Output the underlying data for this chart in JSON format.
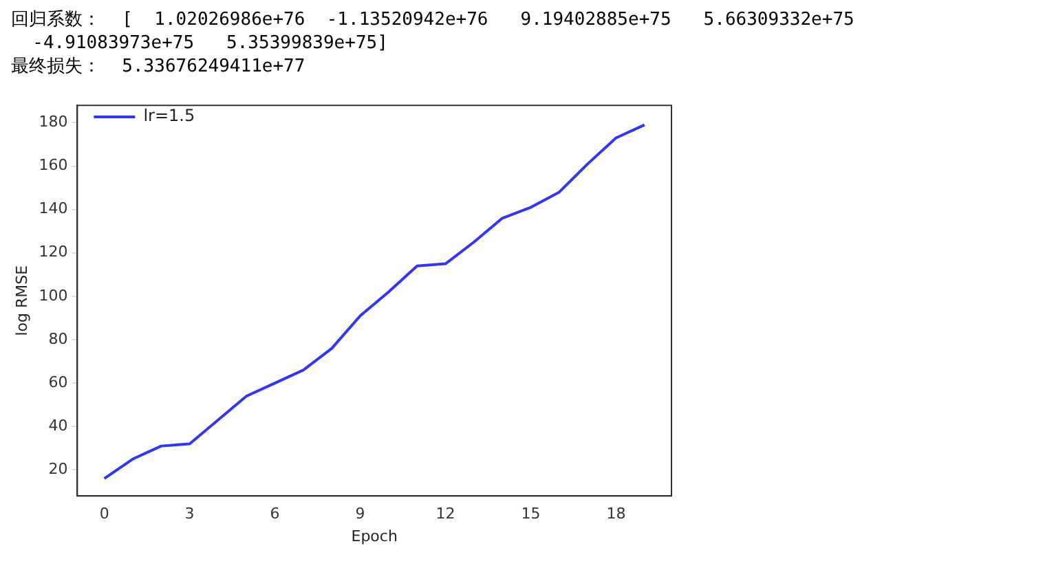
{
  "chart_data": {
    "type": "line",
    "annotations": [
      "回归系数：  [  1.02026986e+76  -1.13520942e+76   9.19402885e+75   5.66309332e+75",
      "  -4.91083973e+75   5.35399839e+75]",
      "最终损失：  5.33676249411e+77"
    ],
    "xlabel": "Epoch",
    "ylabel": "log RMSE",
    "x": [
      0,
      1,
      2,
      3,
      4,
      5,
      6,
      7,
      8,
      9,
      10,
      11,
      12,
      13,
      14,
      15,
      16,
      17,
      18,
      19
    ],
    "series": [
      {
        "name": "lr=1.5",
        "color": "#3333ff",
        "values": [
          16,
          25,
          31,
          32,
          43,
          54,
          60,
          66,
          76,
          91,
          102,
          114,
          115,
          125,
          136,
          141,
          148,
          161,
          173,
          179
        ]
      }
    ],
    "xlim": [
      -0.95,
      19.95
    ],
    "xticks": [
      0,
      3,
      6,
      9,
      12,
      15,
      18
    ],
    "ylim": [
      8,
      188
    ],
    "yticks": [
      20,
      40,
      60,
      80,
      100,
      120,
      140,
      160,
      180
    ],
    "grid": false,
    "legend": "top left",
    "marker": "none",
    "line_style": "solid"
  }
}
